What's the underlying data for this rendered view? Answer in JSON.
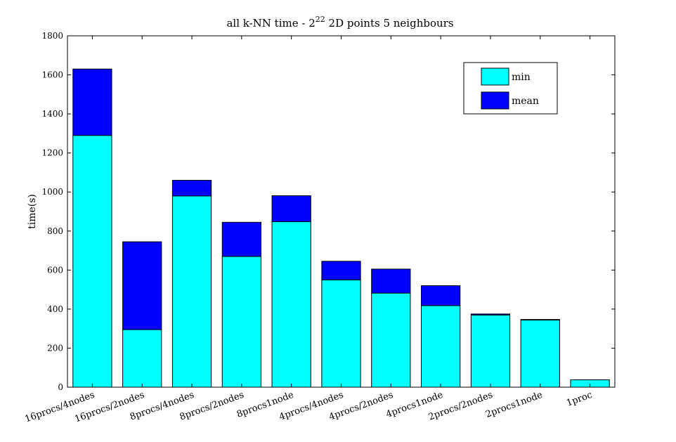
{
  "chart_data": {
    "type": "bar",
    "stacked": true,
    "title": {
      "prefix": "all k-NN time - 2",
      "superscript": "22",
      "suffix": " 2D points 5 neighbours"
    },
    "xlabel": "",
    "ylabel": "time(s)",
    "ylim": [
      0,
      1800
    ],
    "yticks": [
      0,
      200,
      400,
      600,
      800,
      1000,
      1200,
      1400,
      1600,
      1800
    ],
    "grid": false,
    "legend_position": "top-right",
    "categories": [
      "16procs/4nodes",
      "16procs/2nodes",
      "8procs/4nodes",
      "8procs/2nodes",
      "8procs1node",
      "4procs/4nodes",
      "4procs/2nodes",
      "4procs1node",
      "2procs/2nodes",
      "2procs1node",
      "1proc"
    ],
    "series": [
      {
        "name": "min",
        "color": "#00ffff",
        "values": [
          1290,
          295,
          980,
          670,
          848,
          550,
          482,
          418,
          370,
          345,
          38
        ]
      },
      {
        "name": "mean",
        "color": "#0000ff",
        "values": [
          340,
          450,
          80,
          175,
          133,
          95,
          123,
          102,
          5,
          2,
          0
        ]
      }
    ],
    "totals": [
      1630,
      745,
      1060,
      845,
      981,
      645,
      605,
      520,
      375,
      347,
      38
    ]
  }
}
